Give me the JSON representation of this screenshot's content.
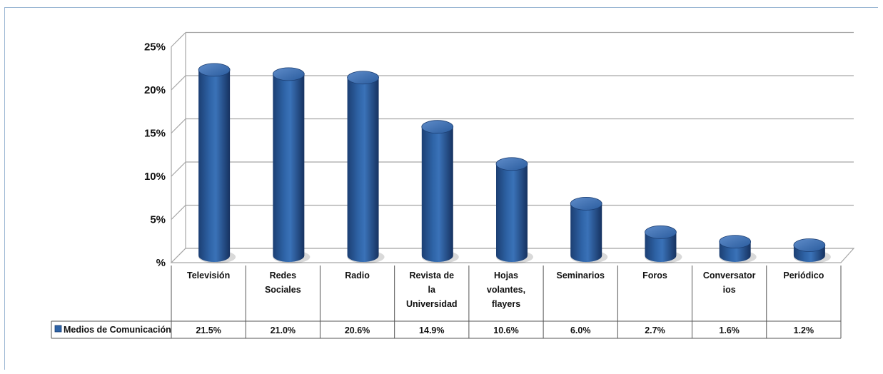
{
  "chart_data": {
    "type": "bar",
    "categories": [
      "Televisión",
      "Redes Sociales",
      "Radio",
      "Revista de la Universidad",
      "Hojas volantes, flayers",
      "Seminarios",
      "Foros",
      "Conversatorios",
      "Periódico"
    ],
    "category_label_lines": [
      [
        "Televisión"
      ],
      [
        "Redes",
        "Sociales"
      ],
      [
        "Radio"
      ],
      [
        "Revista de",
        "la",
        "Universidad"
      ],
      [
        "Hojas",
        "volantes,",
        "flayers"
      ],
      [
        "Seminarios"
      ],
      [
        "Foros"
      ],
      [
        "Conversator",
        "ios"
      ],
      [
        "Periódico"
      ]
    ],
    "series": [
      {
        "name": "Medios de Comunicación",
        "values": [
          21.5,
          21.0,
          20.6,
          14.9,
          10.6,
          6.0,
          2.7,
          1.6,
          1.2
        ],
        "value_labels": [
          "21.5%",
          "21.0%",
          "20.6%",
          "14.9%",
          "10.6%",
          "6.0%",
          "2.7%",
          "1.6%",
          "1.2%"
        ]
      }
    ],
    "y_ticks": [
      "%",
      "5%",
      "10%",
      "15%",
      "20%",
      "25%"
    ],
    "ylim": [
      0,
      25
    ],
    "grid": true,
    "legend": "data-table-left",
    "title": "",
    "xlabel": "",
    "ylabel": "",
    "colors": {
      "bar_dark": "#1c3f73",
      "bar_mid": "#2e63a6",
      "bar_light": "#6f9bd4",
      "grid": "#a6a6a6",
      "legend_key": "#2e63a6"
    }
  }
}
